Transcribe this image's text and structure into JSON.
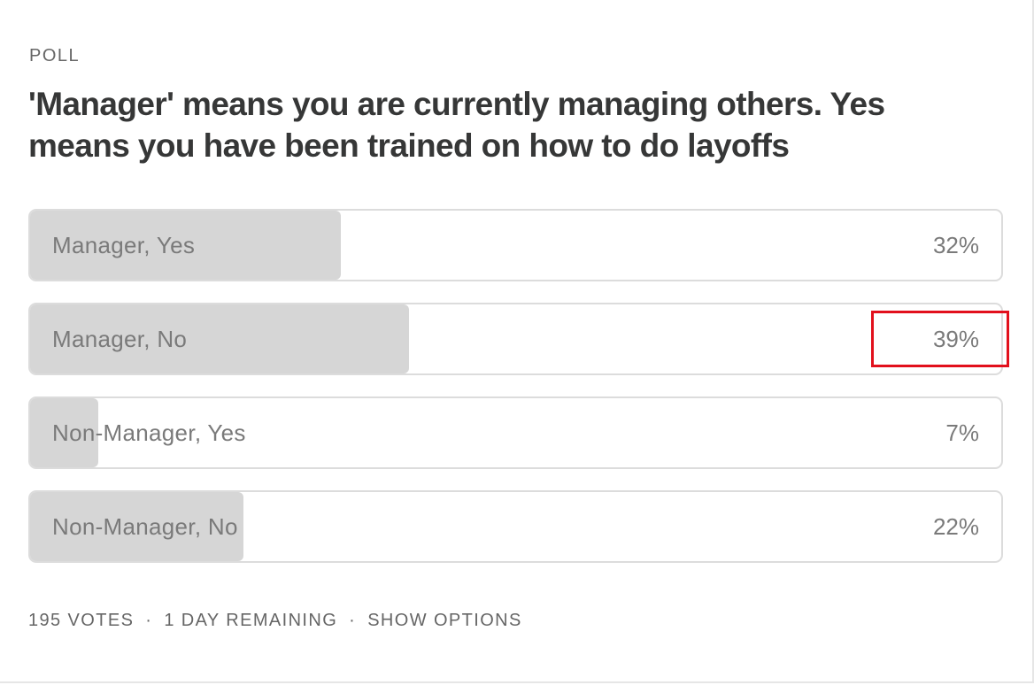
{
  "header": {
    "kicker": "POLL",
    "title": "'Manager' means you are currently managing others. Yes means you have been trained on how to do layoffs"
  },
  "options": [
    {
      "label": "Manager, Yes",
      "value": 32,
      "value_label": "32%"
    },
    {
      "label": "Manager, No",
      "value": 39,
      "value_label": "39%"
    },
    {
      "label": "Non-Manager, Yes",
      "value": 7,
      "value_label": "7%"
    },
    {
      "label": "Non-Manager, No",
      "value": 22,
      "value_label": "22%"
    }
  ],
  "footer": {
    "votes": "195 VOTES",
    "separator": "·",
    "remaining": "1 DAY REMAINING",
    "action": "SHOW OPTIONS"
  }
}
